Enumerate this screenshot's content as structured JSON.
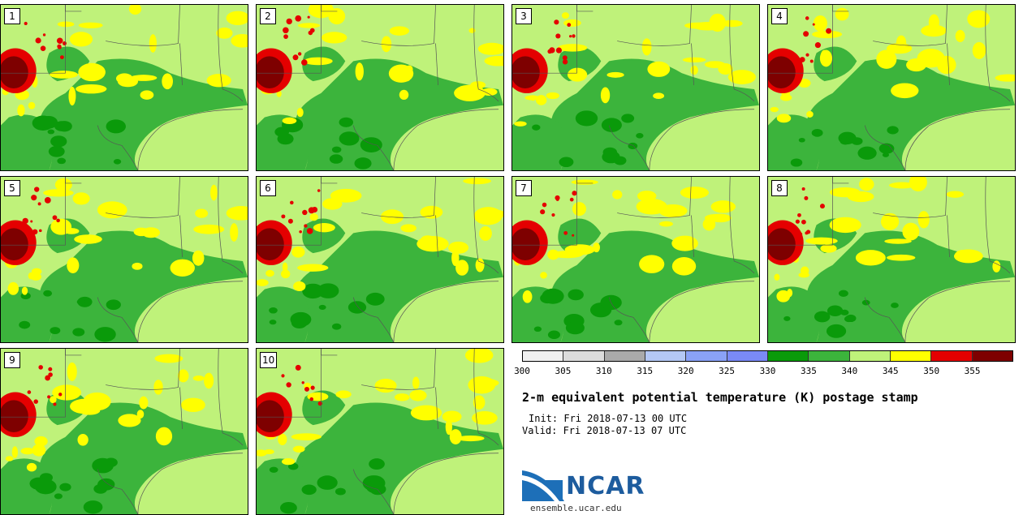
{
  "stamps": [
    {
      "label": "1"
    },
    {
      "label": "2"
    },
    {
      "label": "3"
    },
    {
      "label": "4"
    },
    {
      "label": "5"
    },
    {
      "label": "6"
    },
    {
      "label": "7"
    },
    {
      "label": "8"
    },
    {
      "label": "9"
    },
    {
      "label": "10"
    }
  ],
  "colorbar": {
    "colors": [
      "#f0f0f0",
      "#dcdcdc",
      "#aaaaaa",
      "#b4c8f5",
      "#8aa2f7",
      "#7a8af7",
      "#0a9a0a",
      "#3cb43c",
      "#bff27a",
      "#ffff00",
      "#e40000",
      "#7e0000"
    ],
    "ticks": [
      "300",
      "305",
      "310",
      "315",
      "320",
      "325",
      "330",
      "335",
      "340",
      "345",
      "350",
      "355"
    ]
  },
  "title": "2-m equivalent potential temperature (K) postage stamp",
  "init": "Init: Fri 2018-07-13 00 UTC",
  "valid": "Valid: Fri 2018-07-13 07 UTC",
  "logo": {
    "text": "NCAR",
    "url": "ensemble.ucar.edu"
  }
}
